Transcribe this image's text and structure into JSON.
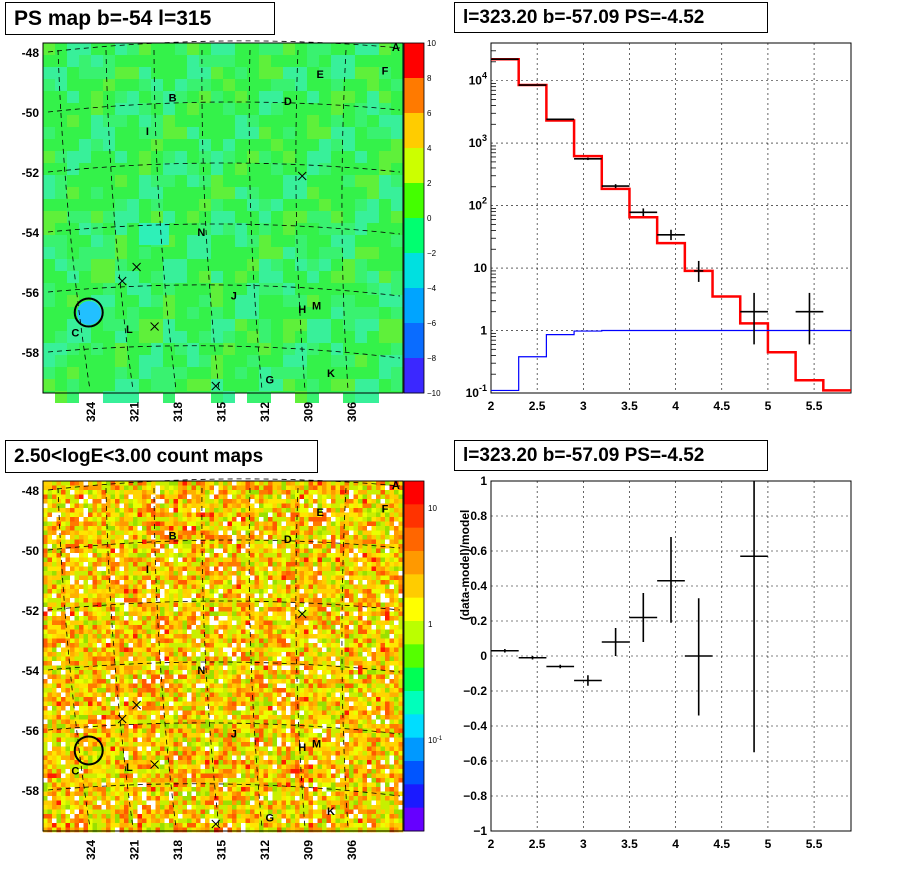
{
  "titles": {
    "map_top": "PS map b=-54 l=315",
    "spectrum": "l=323.20 b=-57.09 PS=-4.52",
    "map_bottom": "2.50<logE<3.00 count maps",
    "residual": "l=323.20 b=-57.09 PS=-4.52"
  },
  "chart_data": [
    {
      "type": "heatmap",
      "title": "PS map b=-54 l=315",
      "x_ticks": [
        "324",
        "321",
        "318",
        "315",
        "312",
        "309",
        "306"
      ],
      "y_ticks": [
        "-48",
        "-50",
        "-52",
        "-54",
        "-56",
        "-58"
      ],
      "colorbar": {
        "range": [
          -10,
          10
        ],
        "ticks": [
          "10",
          "8",
          "6",
          "4",
          "2",
          "0",
          "−2",
          "−4",
          "−6",
          "−8",
          "−10"
        ]
      },
      "labels": [
        {
          "t": "A",
          "x": 0.98,
          "y": 0.0
        },
        {
          "t": "E",
          "x": 0.77,
          "y": 0.08
        },
        {
          "t": "F",
          "x": 0.95,
          "y": 0.07
        },
        {
          "t": "B",
          "x": 0.36,
          "y": 0.15
        },
        {
          "t": "D",
          "x": 0.68,
          "y": 0.16
        },
        {
          "t": "I",
          "x": 0.29,
          "y": 0.25
        },
        {
          "t": "N",
          "x": 0.44,
          "y": 0.55
        },
        {
          "t": "J",
          "x": 0.53,
          "y": 0.74
        },
        {
          "t": "H",
          "x": 0.72,
          "y": 0.78
        },
        {
          "t": "M",
          "x": 0.76,
          "y": 0.77
        },
        {
          "t": "C",
          "x": 0.09,
          "y": 0.85
        },
        {
          "t": "L",
          "x": 0.24,
          "y": 0.84
        },
        {
          "t": "G",
          "x": 0.63,
          "y": 0.99
        },
        {
          "t": "K",
          "x": 0.8,
          "y": 0.97
        }
      ],
      "crosses": [
        [
          0.72,
          0.38
        ],
        [
          0.26,
          0.64
        ],
        [
          0.22,
          0.68
        ],
        [
          0.31,
          0.81
        ],
        [
          0.48,
          0.98
        ]
      ],
      "circle": {
        "x": 0.127,
        "y": 0.77
      }
    },
    {
      "type": "line",
      "title": "l=323.20 b=-57.09 PS=-4.52",
      "yscale": "log",
      "xlim": [
        2,
        5.9
      ],
      "ylim": [
        0.1,
        40000
      ],
      "x_ticks": [
        "2",
        "2.5",
        "3",
        "3.5",
        "4",
        "4.5",
        "5",
        "5.5"
      ],
      "y_ticks": [
        "10^-1",
        "1",
        "10",
        "10^2",
        "10^3",
        "10^4"
      ],
      "series": [
        {
          "color": "#ff0000",
          "bins": [
            [
              2.0,
              2.3,
              22000
            ],
            [
              2.3,
              2.6,
              8500
            ],
            [
              2.6,
              2.9,
              2300
            ],
            [
              2.9,
              3.2,
              620
            ],
            [
              3.2,
              3.5,
              185
            ],
            [
              3.5,
              3.8,
              65
            ],
            [
              3.8,
              4.1,
              25
            ],
            [
              4.1,
              4.4,
              9
            ],
            [
              4.4,
              4.7,
              3.5
            ],
            [
              4.7,
              5.0,
              1.3
            ],
            [
              5.0,
              5.3,
              0.45
            ],
            [
              5.3,
              5.6,
              0.16
            ],
            [
              5.6,
              5.9,
              0.11
            ]
          ]
        },
        {
          "color": "#0000ff",
          "bins": [
            [
              2.0,
              2.3,
              0.11
            ],
            [
              2.3,
              2.6,
              0.38
            ],
            [
              2.6,
              2.9,
              0.86
            ],
            [
              2.9,
              3.2,
              0.98
            ],
            [
              3.2,
              5.9,
              1.0
            ]
          ]
        }
      ],
      "data_points": [
        {
          "x": 2.15,
          "y": 22000,
          "xerr": 0.15,
          "ylo": 21500,
          "yhi": 22500
        },
        {
          "x": 2.45,
          "y": 8500,
          "xerr": 0.15,
          "ylo": 8400,
          "yhi": 8600
        },
        {
          "x": 2.75,
          "y": 2400,
          "xerr": 0.15,
          "ylo": 2350,
          "yhi": 2450
        },
        {
          "x": 3.05,
          "y": 560,
          "xerr": 0.15,
          "ylo": 535,
          "yhi": 585
        },
        {
          "x": 3.35,
          "y": 205,
          "xerr": 0.15,
          "ylo": 190,
          "yhi": 220
        },
        {
          "x": 3.65,
          "y": 78,
          "xerr": 0.15,
          "ylo": 68,
          "yhi": 90
        },
        {
          "x": 3.95,
          "y": 34,
          "xerr": 0.15,
          "ylo": 28,
          "yhi": 41
        },
        {
          "x": 4.25,
          "y": 9,
          "xerr": 0.05,
          "ylo": 6,
          "yhi": 13
        },
        {
          "x": 4.85,
          "y": 2,
          "xerr": 0.15,
          "ylo": 0.6,
          "yhi": 4
        },
        {
          "x": 5.45,
          "y": 2,
          "xerr": 0.15,
          "ylo": 0.6,
          "yhi": 4
        }
      ]
    },
    {
      "type": "heatmap",
      "title": "2.50<logE<3.00 count maps",
      "x_ticks": [
        "324",
        "321",
        "318",
        "315",
        "312",
        "309",
        "306"
      ],
      "y_ticks": [
        "-48",
        "-50",
        "-52",
        "-54",
        "-56",
        "-58"
      ],
      "colorbar": {
        "scale": "log",
        "ticks": [
          "10",
          "1",
          "10^-1"
        ]
      }
    },
    {
      "type": "scatter",
      "title": "l=323.20 b=-57.09 PS=-4.52",
      "ylabel": "(data-model)/model",
      "xlim": [
        2,
        5.9
      ],
      "ylim": [
        -1,
        1
      ],
      "x_ticks": [
        "2",
        "2.5",
        "3",
        "3.5",
        "4",
        "4.5",
        "5",
        "5.5"
      ],
      "y_ticks": [
        "1",
        "0.8",
        "0.6",
        "0.4",
        "0.2",
        "0",
        "−0.2",
        "−0.4",
        "−0.6",
        "−0.8",
        "−1"
      ],
      "points": [
        {
          "x": 2.15,
          "y": 0.03,
          "xerr": 0.15,
          "ylo": 0.02,
          "yhi": 0.04
        },
        {
          "x": 2.45,
          "y": -0.01,
          "xerr": 0.15,
          "ylo": -0.02,
          "yhi": 0.0
        },
        {
          "x": 2.75,
          "y": -0.06,
          "xerr": 0.15,
          "ylo": -0.07,
          "yhi": -0.05
        },
        {
          "x": 3.05,
          "y": -0.14,
          "xerr": 0.15,
          "ylo": -0.17,
          "yhi": -0.11
        },
        {
          "x": 3.35,
          "y": 0.08,
          "xerr": 0.15,
          "ylo": 0.0,
          "yhi": 0.16
        },
        {
          "x": 3.65,
          "y": 0.22,
          "xerr": 0.15,
          "ylo": 0.08,
          "yhi": 0.36
        },
        {
          "x": 3.95,
          "y": 0.43,
          "xerr": 0.15,
          "ylo": 0.19,
          "yhi": 0.68
        },
        {
          "x": 4.25,
          "y": 0.0,
          "xerr": 0.15,
          "ylo": -0.34,
          "yhi": 0.33
        },
        {
          "x": 4.85,
          "y": 0.57,
          "xerr": 0.15,
          "ylo": -0.55,
          "yhi": 1.0
        }
      ]
    }
  ]
}
